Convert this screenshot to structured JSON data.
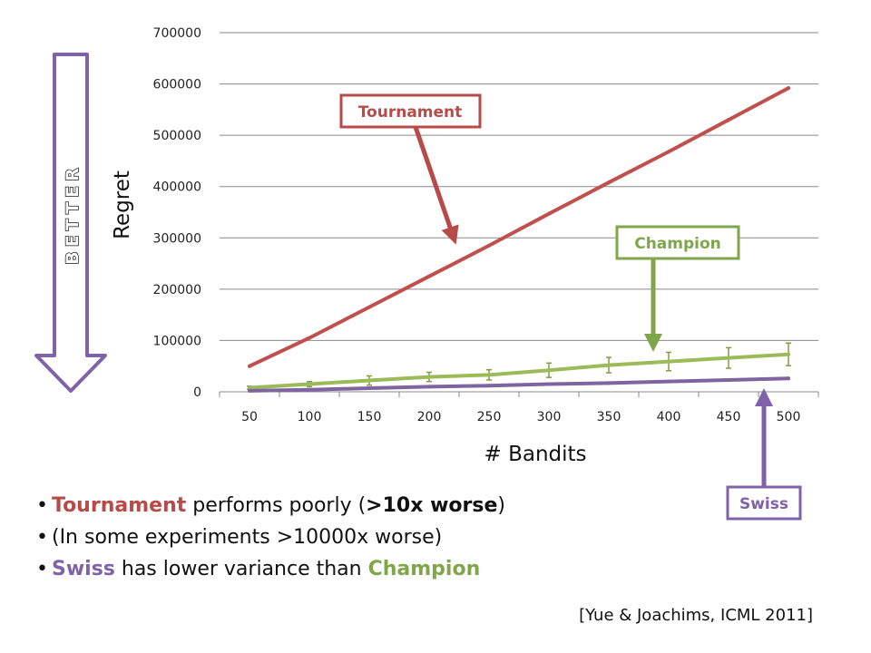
{
  "chart_data": {
    "type": "line",
    "xlabel": "# Bandits",
    "ylabel": "Regret",
    "categories": [
      50,
      100,
      150,
      200,
      250,
      300,
      350,
      400,
      450,
      500
    ],
    "ylim": [
      0,
      700000
    ],
    "yticks": [
      0,
      100000,
      200000,
      300000,
      400000,
      500000,
      600000,
      700000
    ],
    "grid": "horizontal",
    "series": [
      {
        "name": "Tournament",
        "color": "#c0504d",
        "values": [
          50000,
          105000,
          165000,
          225000,
          285000,
          347000,
          408000,
          468000,
          530000,
          592000
        ]
      },
      {
        "name": "Champion",
        "color": "#9bbb59",
        "values": [
          8000,
          15000,
          22000,
          29000,
          33000,
          42000,
          52000,
          59000,
          66000,
          73000
        ],
        "error": [
          3000,
          5000,
          9000,
          9000,
          10000,
          14000,
          15000,
          18000,
          20000,
          22000
        ]
      },
      {
        "name": "Swiss",
        "color": "#8064a2",
        "values": [
          2000,
          4000,
          7000,
          10000,
          12000,
          15000,
          17000,
          20000,
          23000,
          26000
        ]
      }
    ]
  },
  "callouts": {
    "tournament": "Tournament",
    "champion": "Champion",
    "swiss": "Swiss"
  },
  "better_label": "BETTER",
  "bullets": {
    "b1": {
      "a": "Tournament",
      "b": " performs poorly (",
      "c": ">10x worse",
      "d": ")"
    },
    "b2": "(In some experiments >10000x worse)",
    "b3": {
      "a": "Swiss",
      "b": " has lower variance than ",
      "c": "Champion"
    }
  },
  "citation": "[Yue & Joachims, ICML 2011]"
}
